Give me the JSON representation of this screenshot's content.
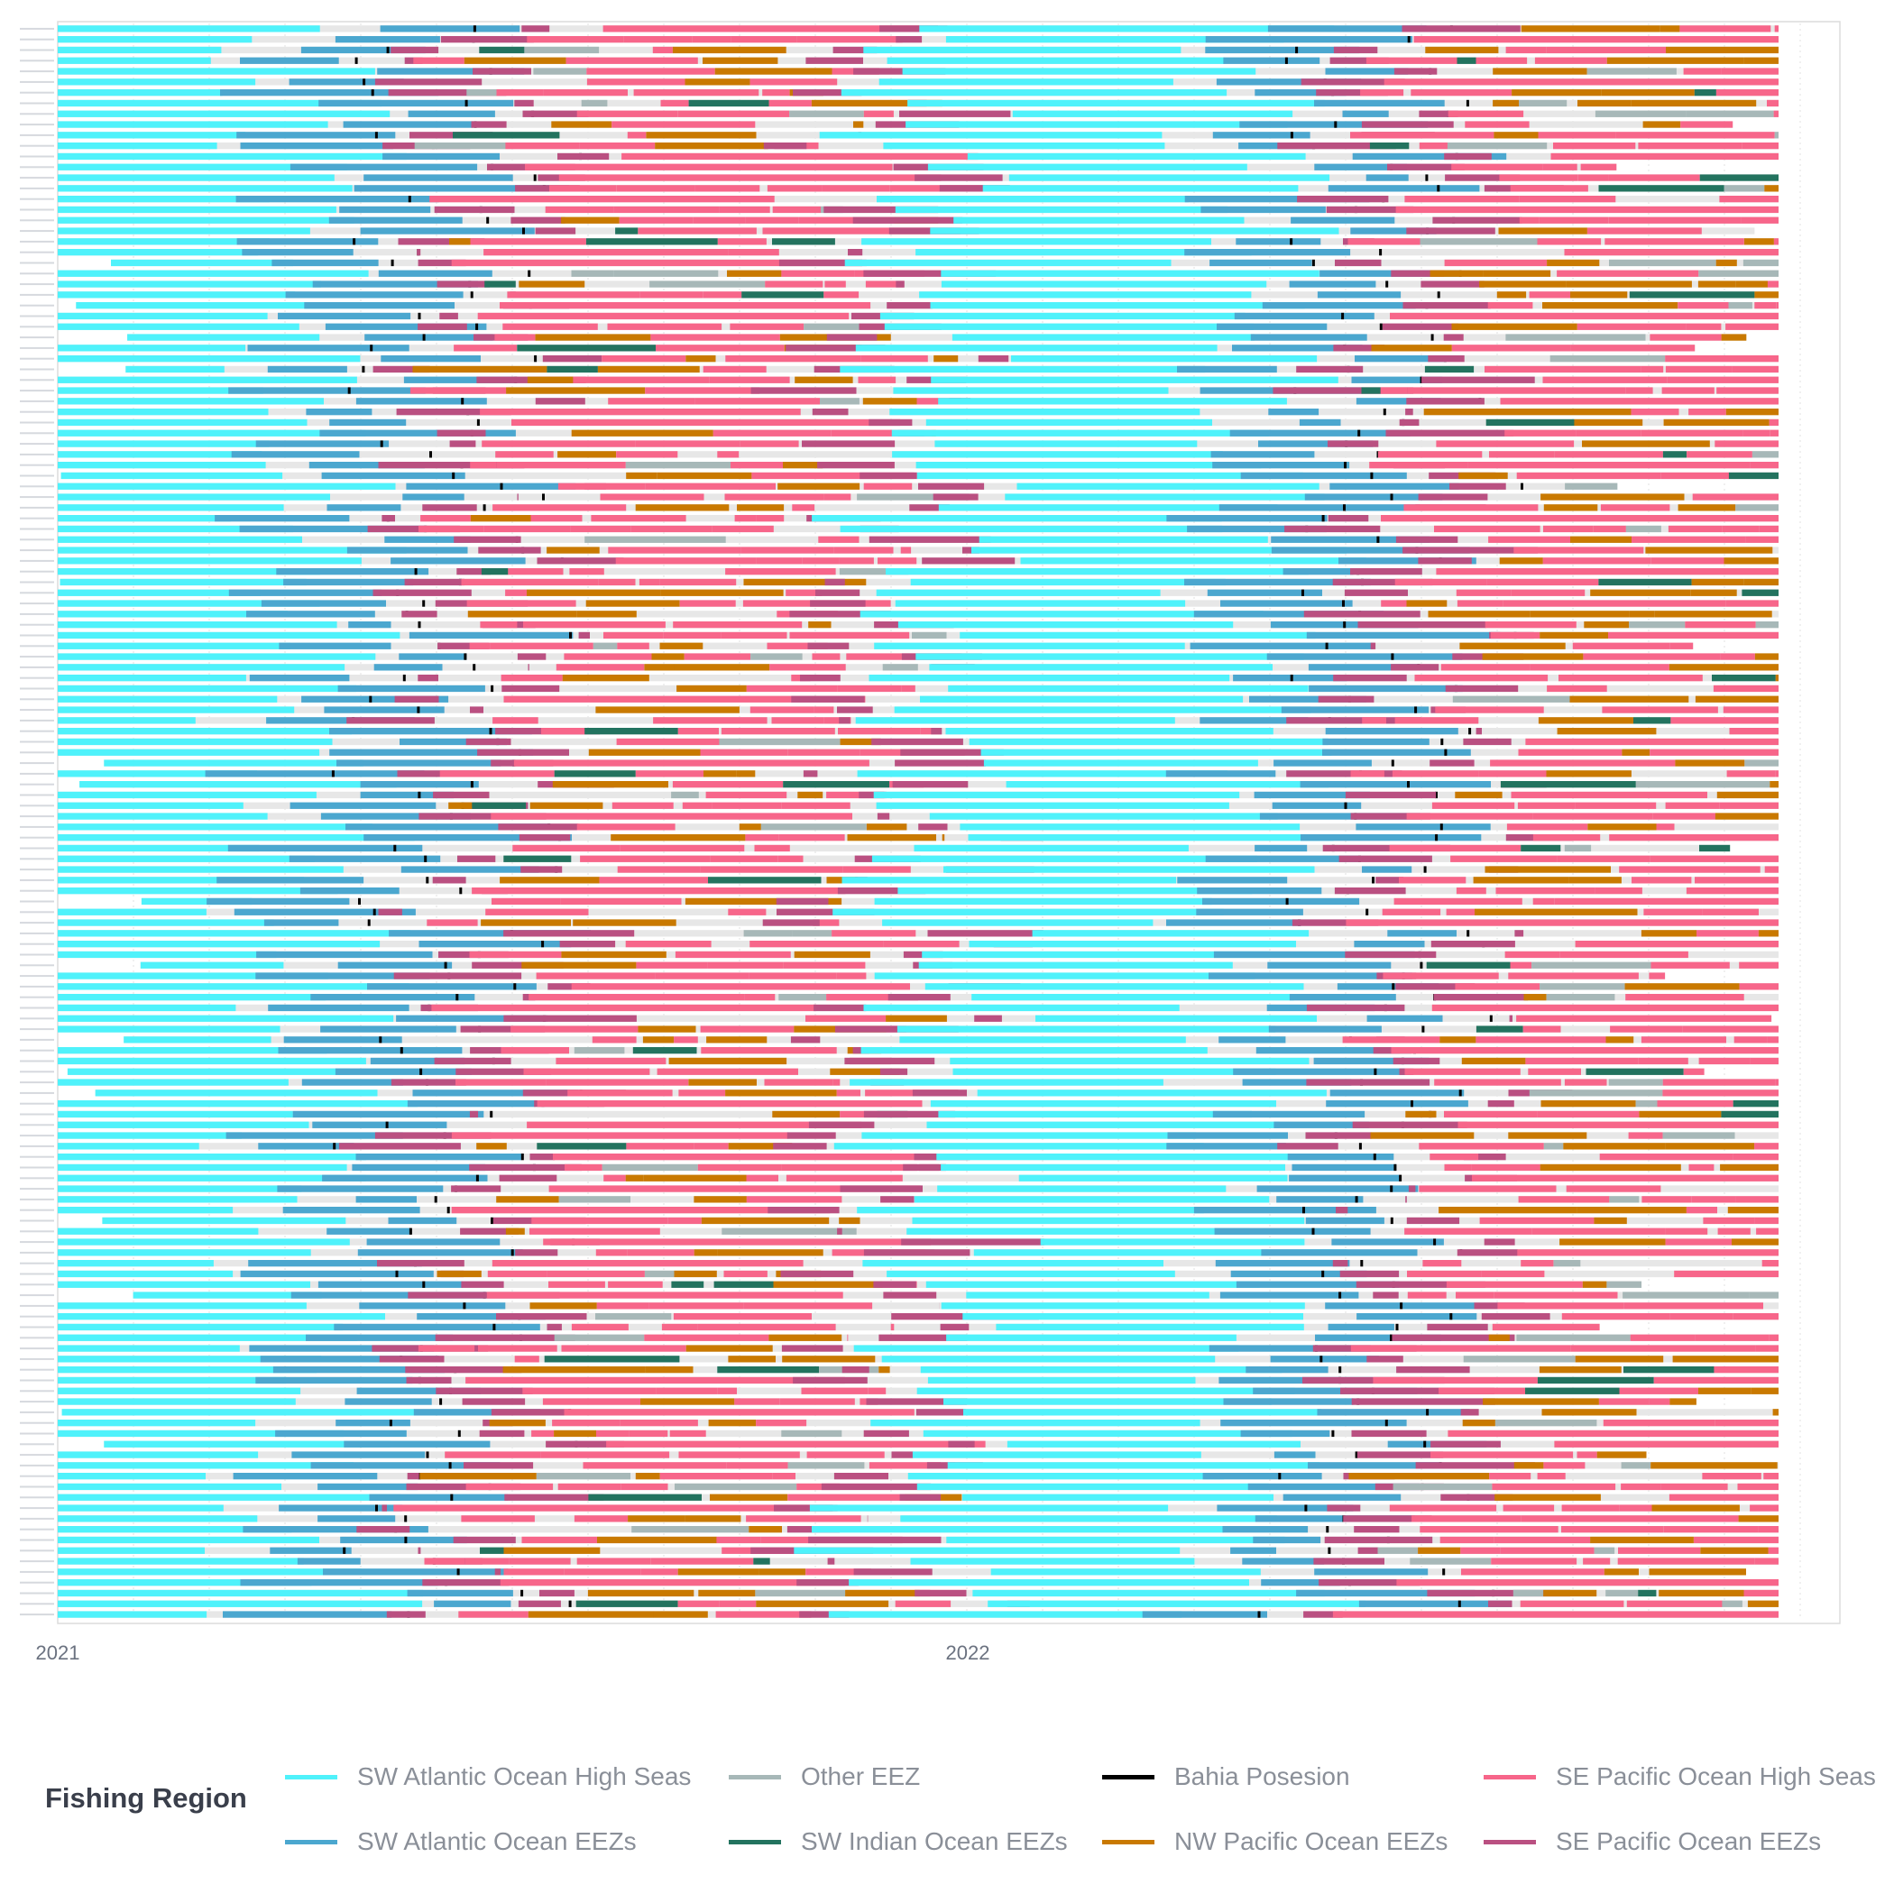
{
  "chart_data": {
    "type": "timeline",
    "x_range": [
      "2021-01-01",
      "2022-11-30"
    ],
    "x_ticks": [
      "2021",
      "2022"
    ],
    "vessel_count": 150,
    "legend_title": "Fishing Region",
    "legend_columns": 4,
    "grid": "vertical dotted",
    "series": [
      {
        "key": "swa_hs",
        "name": "SW Atlantic Ocean High Seas",
        "color": "#4ff2fb"
      },
      {
        "key": "swa_eez",
        "name": "SW Atlantic Ocean EEZs",
        "color": "#4ba7cf"
      },
      {
        "key": "other",
        "name": "Other EEZ",
        "color": "#a7b8b8"
      },
      {
        "key": "swi_eez",
        "name": "SW Indian Ocean EEZs",
        "color": "#23735f"
      },
      {
        "key": "bahia",
        "name": "Bahia Posesion",
        "color": "#000000"
      },
      {
        "key": "nwp_eez",
        "name": "NW Pacific Ocean EEZs",
        "color": "#c97900"
      },
      {
        "key": "sep_hs",
        "name": "SE Pacific Ocean High Seas",
        "color": "#f7668a"
      },
      {
        "key": "sep_eez",
        "name": "SE Pacific Ocean EEZs",
        "color": "#ba5081"
      }
    ],
    "background_track_color": "#e7e7e7",
    "typical_schedule": [
      {
        "region": "swa_hs",
        "start": "2021-01-01",
        "end": "2021-04-15"
      },
      {
        "region": "swa_eez",
        "start": "2021-04-15",
        "end": "2021-06-10"
      },
      {
        "region": "bahia",
        "start": "2021-06-10",
        "end": "2021-06-12"
      },
      {
        "region": "sep_eez",
        "start": "2021-06-12",
        "end": "2021-07-05"
      },
      {
        "region": "sep_hs",
        "start": "2021-07-05",
        "end": "2021-11-25"
      },
      {
        "region": "sep_eez",
        "start": "2021-11-25",
        "end": "2021-12-15"
      },
      {
        "region": "swa_hs",
        "start": "2021-12-15",
        "end": "2022-05-01"
      },
      {
        "region": "swa_eez",
        "start": "2022-05-01",
        "end": "2022-06-20"
      },
      {
        "region": "bahia",
        "start": "2022-06-20",
        "end": "2022-06-22"
      },
      {
        "region": "sep_eez",
        "start": "2022-06-22",
        "end": "2022-07-15"
      },
      {
        "region": "sep_hs",
        "start": "2022-07-15",
        "end": "2022-11-30"
      }
    ]
  }
}
